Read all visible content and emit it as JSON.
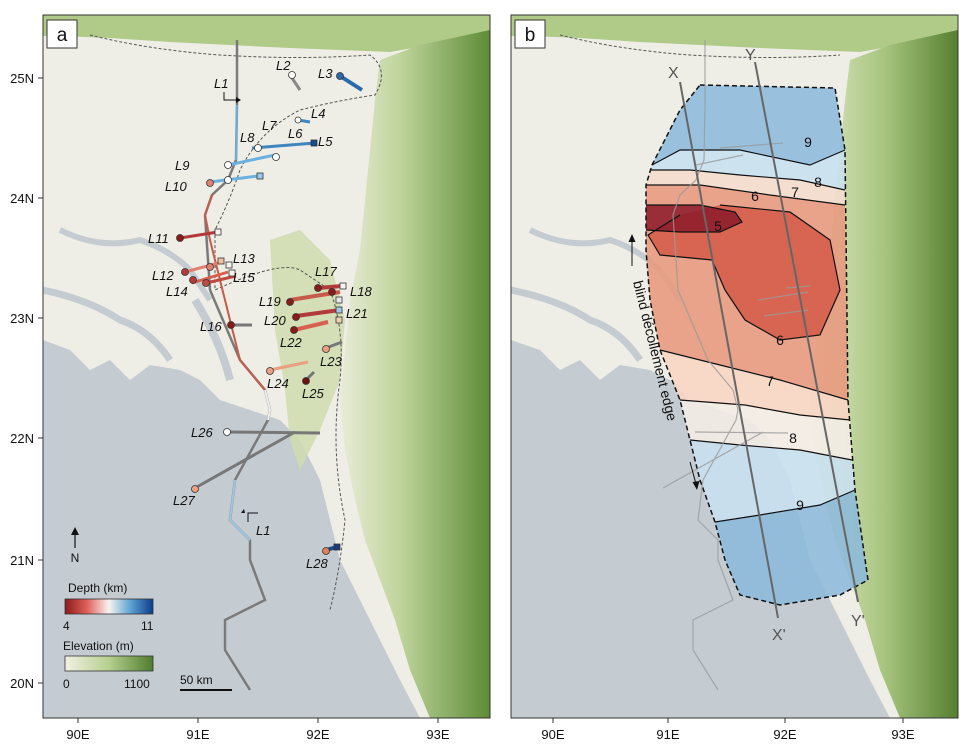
{
  "panels": [
    {
      "id": "a",
      "label": "a"
    },
    {
      "id": "b",
      "label": "b"
    }
  ],
  "axes": {
    "lon_ticks": [
      "90E",
      "91E",
      "92E",
      "93E"
    ],
    "lat_ticks": [
      "25N",
      "24N",
      "23N",
      "22N",
      "21N",
      "20N"
    ]
  },
  "panel_a": {
    "profile_labels": [
      "L1",
      "L2",
      "L3",
      "L4",
      "L5",
      "L6",
      "L7",
      "L8",
      "L9",
      "L10",
      "L11",
      "L12",
      "L13",
      "L14",
      "L15",
      "L16",
      "L17",
      "L18",
      "L19",
      "L20",
      "L21",
      "L22",
      "L23",
      "L24",
      "L25",
      "L26",
      "L27",
      "L28"
    ],
    "line_L1_label_top": "L1",
    "line_L1_label_bottom": "L1",
    "north_arrow_label": "N",
    "depth_legend": {
      "title": "Depth (km)",
      "min_label": "4",
      "max_label": "11",
      "colors": [
        "#8b1a1a",
        "#e0605a",
        "#f7f4ef",
        "#5aa0d0",
        "#0b3d8a"
      ]
    },
    "elevation_legend": {
      "title": "Elevation (m)",
      "min_label": "0",
      "max_label": "1100",
      "colors": [
        "#f3f1e3",
        "#b5cf8f",
        "#4f7d2d"
      ]
    },
    "scale_bar_label": "50 km"
  },
  "panel_b": {
    "contour_labels": [
      "9",
      "8",
      "7",
      "6",
      "5",
      "6",
      "7",
      "8",
      "9"
    ],
    "section_labels": {
      "x_top": "X",
      "y_top": "Y",
      "x_bottom": "X'",
      "y_bottom": "Y'"
    },
    "edge_label": "blind décollement edge"
  },
  "colors": {
    "sea": "#c4ccd2",
    "plain": "#efeee6",
    "hills": "#7fa352",
    "frame": "#333333",
    "deep_blue": "#3f86c0",
    "shallow_red": "#b23a3a"
  }
}
